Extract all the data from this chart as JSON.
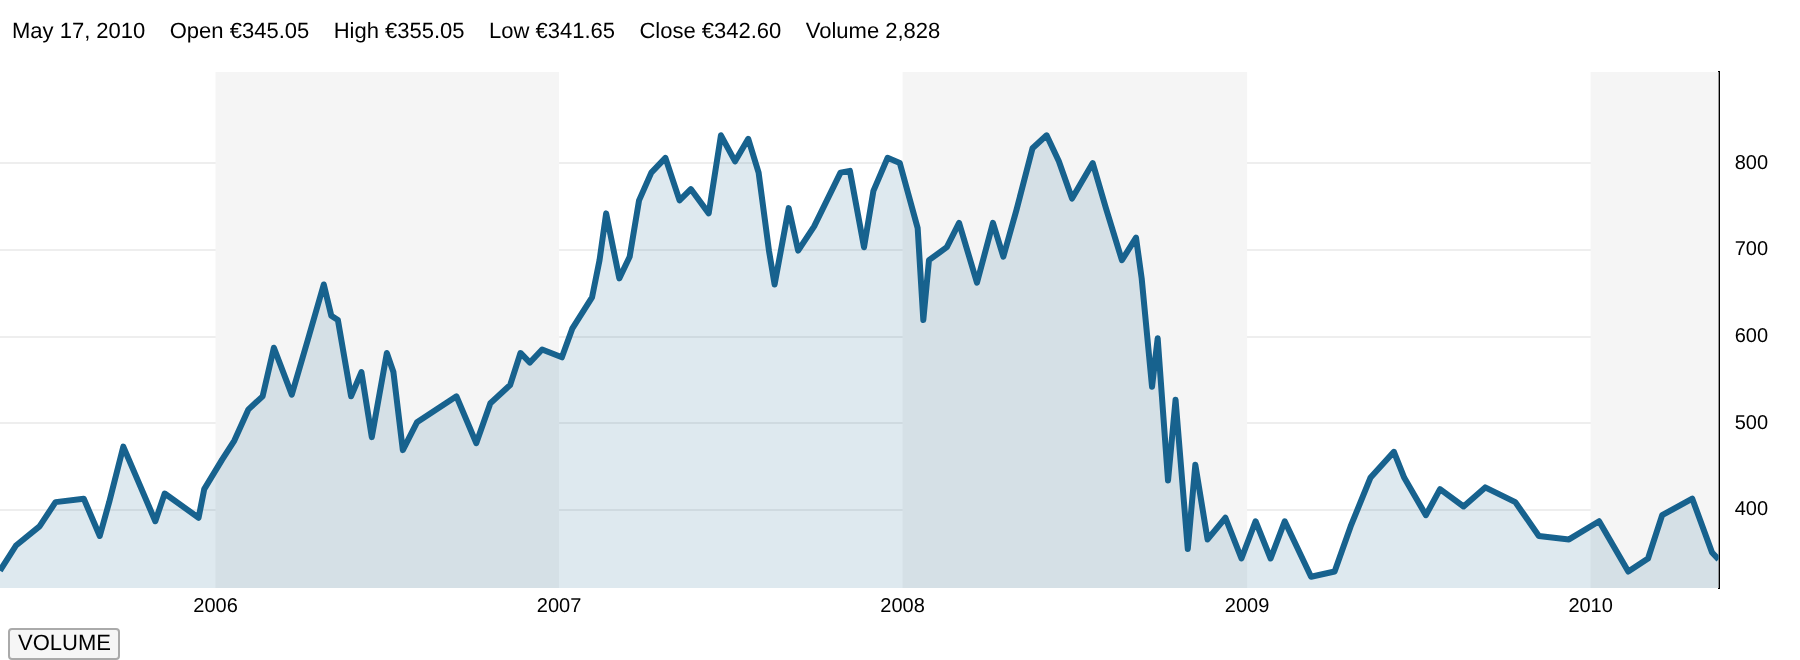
{
  "chart_data": {
    "type": "area",
    "title": "May 17, 2010    Open €345.05    High €355.05    Low €341.65    Close €342.60    Volume 2,828",
    "annotations": [
      "VOLUME"
    ],
    "x": [
      "2005-05-17",
      "2005-06-03",
      "2005-06-28",
      "2005-07-15",
      "2005-08-14",
      "2005-08-31",
      "2005-09-10",
      "2005-09-25",
      "2005-10-12",
      "2005-10-29",
      "2005-11-08",
      "2005-12-14",
      "2005-12-20",
      "2006-01-08",
      "2006-01-21",
      "2006-02-05",
      "2006-02-20",
      "2006-03-04",
      "2006-03-23",
      "2006-04-09",
      "2006-04-26",
      "2006-05-04",
      "2006-05-11",
      "2006-05-25",
      "2006-06-05",
      "2006-06-16",
      "2006-07-02",
      "2006-07-09",
      "2006-07-19",
      "2006-08-03",
      "2006-08-24",
      "2006-09-14",
      "2006-10-05",
      "2006-10-20",
      "2006-11-10",
      "2006-11-21",
      "2006-12-01",
      "2006-12-14",
      "2007-01-04",
      "2007-01-15",
      "2007-02-05",
      "2007-02-13",
      "2007-02-20",
      "2007-03-06",
      "2007-03-17",
      "2007-03-27",
      "2007-04-09",
      "2007-04-24",
      "2007-05-09",
      "2007-05-21",
      "2007-06-09",
      "2007-06-22",
      "2007-07-07",
      "2007-07-21",
      "2007-08-01",
      "2007-08-12",
      "2007-08-18",
      "2007-09-02",
      "2007-09-12",
      "2007-09-29",
      "2007-10-27",
      "2007-11-06",
      "2007-11-21",
      "2007-12-01",
      "2007-12-16",
      "2007-12-29",
      "2008-01-17",
      "2008-01-23",
      "2008-01-29",
      "2008-02-17",
      "2008-03-01",
      "2008-03-20",
      "2008-04-06",
      "2008-04-17",
      "2008-05-01",
      "2008-05-18",
      "2008-06-02",
      "2008-06-15",
      "2008-06-29",
      "2008-07-21",
      "2008-08-04",
      "2008-08-21",
      "2008-09-05",
      "2008-09-11",
      "2008-09-22",
      "2008-09-28",
      "2008-10-09",
      "2008-10-17",
      "2008-10-30",
      "2008-11-07",
      "2008-11-20",
      "2008-12-09",
      "2008-12-26",
      "2009-01-10",
      "2009-01-26",
      "2009-02-10",
      "2009-03-10",
      "2009-04-04",
      "2009-04-21",
      "2009-05-12",
      "2009-06-06",
      "2009-06-17",
      "2009-07-10",
      "2009-07-25",
      "2009-08-19",
      "2009-09-11",
      "2009-10-13",
      "2009-11-07",
      "2009-12-09",
      "2010-01-10",
      "2010-02-10",
      "2010-03-03",
      "2010-03-18",
      "2010-04-19",
      "2010-05-10",
      "2010-05-17"
    ],
    "series": [
      {
        "color": "#17628e",
        "values": [
          330,
          359,
          381,
          409,
          413,
          370,
          409,
          473,
          430,
          387,
          419,
          391,
          424,
          458,
          480,
          516,
          531,
          587,
          533,
          596,
          660,
          624,
          619,
          531,
          559,
          484,
          581,
          559,
          469,
          501,
          516,
          531,
          477,
          523,
          544,
          581,
          570,
          585,
          576,
          609,
          645,
          688,
          742,
          667,
          692,
          757,
          789,
          806,
          757,
          770,
          742,
          832,
          802,
          828,
          789,
          699,
          660,
          748,
          699,
          727,
          789,
          791,
          703,
          768,
          806,
          800,
          725,
          619,
          688,
          703,
          731,
          662,
          731,
          692,
          746,
          817,
          832,
          802,
          759,
          800,
          748,
          688,
          714,
          667,
          542,
          598,
          434,
          527,
          355,
          452,
          366,
          391,
          344,
          387,
          344,
          387,
          323,
          329,
          381,
          437,
          467,
          437,
          394,
          424,
          404,
          426,
          409,
          370,
          366,
          387,
          329,
          344,
          394,
          413,
          351,
          343
        ]
      }
    ],
    "xlim": [
      "2005-05-17",
      "2010-05-17"
    ],
    "xticks": [
      {
        "value": "2006-01-01",
        "label": "2006"
      },
      {
        "value": "2007-01-01",
        "label": "2007"
      },
      {
        "value": "2008-01-01",
        "label": "2008"
      },
      {
        "value": "2009-01-01",
        "label": "2009"
      },
      {
        "value": "2010-01-01",
        "label": "2010"
      }
    ],
    "ylim": [
      310,
      905
    ],
    "yticks": [
      400,
      500,
      600,
      700,
      800
    ],
    "grid": "y",
    "legend": false,
    "marker": "none",
    "line_style": "solid",
    "bands": [
      {
        "axis": "x",
        "from": "2006-01-01",
        "to": "2007-01-01",
        "color": "#f5f5f5"
      },
      {
        "axis": "x",
        "from": "2008-01-01",
        "to": "2009-01-01",
        "color": "#f5f5f5"
      },
      {
        "axis": "x",
        "from": "2010-01-01",
        "to": "2010-05-17",
        "color": "#f5f5f5"
      }
    ]
  }
}
